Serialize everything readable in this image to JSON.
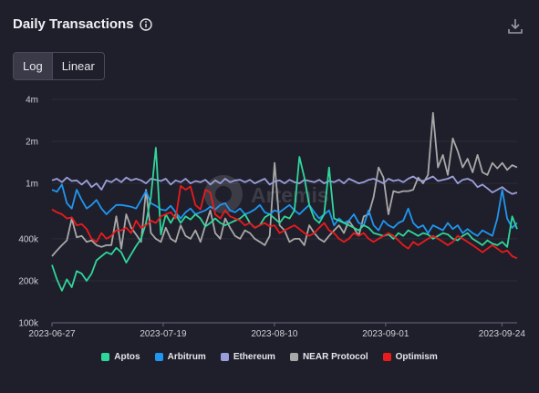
{
  "header": {
    "title": "Daily Transactions"
  },
  "scale_toggle": {
    "options": [
      "Log",
      "Linear"
    ],
    "selected": "Log"
  },
  "watermark": "Artemis",
  "colors": {
    "background": "#1f1f2b",
    "Aptos": "#2fd69a",
    "Arbitrum": "#1f96f0",
    "Ethereum": "#9a9ed8",
    "NEAR Protocol": "#a8a8a8",
    "Optimism": "#ea1b1b"
  },
  "chart_data": {
    "type": "line",
    "title": "Daily Transactions",
    "xlabel": "",
    "ylabel": "",
    "yscale": "log",
    "ylim": [
      100000,
      4000000
    ],
    "y_ticks": [
      100000,
      200000,
      400000,
      1000000,
      2000000,
      4000000
    ],
    "y_tick_labels": [
      "100k",
      "200k",
      "400k",
      "1m",
      "2m",
      "4m"
    ],
    "x_start": "2023-06-27",
    "x_end": "2023-09-27",
    "x_tick_labels": [
      "2023-06-27",
      "2023-07-19",
      "2023-08-10",
      "2023-09-01",
      "2023-09-24"
    ],
    "grid": true,
    "legend_position": "bottom",
    "series": [
      {
        "name": "Aptos",
        "values": [
          260000,
          205000,
          170000,
          205000,
          180000,
          235000,
          225000,
          200000,
          225000,
          280000,
          300000,
          320000,
          310000,
          345000,
          320000,
          270000,
          310000,
          355000,
          400000,
          520000,
          800000,
          1800000,
          430000,
          600000,
          520000,
          600000,
          520000,
          580000,
          550000,
          600000,
          560000,
          490000,
          520000,
          560000,
          520000,
          500000,
          520000,
          540000,
          560000,
          600000,
          520000,
          480000,
          500000,
          570000,
          600000,
          560000,
          520000,
          580000,
          560000,
          640000,
          1550000,
          1100000,
          700000,
          560000,
          520000,
          600000,
          1300000,
          560000,
          540000,
          520000,
          500000,
          480000,
          460000,
          500000,
          480000,
          440000,
          430000,
          420000,
          430000,
          400000,
          440000,
          420000,
          460000,
          440000,
          420000,
          440000,
          430000,
          400000,
          420000,
          440000,
          430000,
          400000,
          390000,
          420000,
          440000,
          400000,
          380000,
          360000,
          390000,
          370000,
          360000,
          380000,
          350000,
          580000,
          470000
        ]
      },
      {
        "name": "Arbitrum",
        "values": [
          900000,
          870000,
          980000,
          720000,
          660000,
          900000,
          760000,
          660000,
          700000,
          760000,
          660000,
          600000,
          650000,
          700000,
          700000,
          690000,
          680000,
          660000,
          760000,
          880000,
          720000,
          690000,
          650000,
          640000,
          690000,
          620000,
          560000,
          620000,
          660000,
          600000,
          620000,
          640000,
          680000,
          650000,
          700000,
          720000,
          640000,
          620000,
          660000,
          600000,
          620000,
          650000,
          700000,
          620000,
          600000,
          640000,
          620000,
          660000,
          700000,
          640000,
          600000,
          650000,
          700000,
          620000,
          560000,
          600000,
          640000,
          500000,
          560000,
          520000,
          540000,
          600000,
          520000,
          500000,
          640000,
          500000,
          460000,
          540000,
          500000,
          480000,
          520000,
          540000,
          660000,
          520000,
          480000,
          500000,
          440000,
          500000,
          480000,
          460000,
          520000,
          470000,
          500000,
          440000,
          470000,
          440000,
          420000,
          460000,
          440000,
          420000,
          560000,
          900000,
          560000,
          480000,
          520000
        ]
      },
      {
        "name": "Ethereum",
        "values": [
          1050000,
          1080000,
          1020000,
          1100000,
          1040000,
          1050000,
          980000,
          1050000,
          940000,
          1000000,
          900000,
          1050000,
          1020000,
          1080000,
          1020000,
          1100000,
          1050000,
          1080000,
          1050000,
          1000000,
          1080000,
          1060000,
          1040000,
          1080000,
          980000,
          1050000,
          1020000,
          1080000,
          1000000,
          1040000,
          1020000,
          1060000,
          980000,
          1050000,
          1000000,
          1080000,
          1020000,
          1050000,
          1060000,
          1020000,
          1060000,
          1000000,
          1040000,
          1080000,
          980000,
          1030000,
          1050000,
          1000000,
          1060000,
          1020000,
          1000000,
          1060000,
          1040000,
          1020000,
          1060000,
          1000000,
          1040000,
          1020000,
          1060000,
          1000000,
          1080000,
          1040000,
          1000000,
          1020000,
          1060000,
          1080000,
          1040000,
          1000000,
          1080000,
          1040000,
          1060000,
          1020000,
          1080000,
          1120000,
          1060000,
          1040000,
          1080000,
          1120000,
          1040000,
          1060000,
          1080000,
          1120000,
          1000000,
          1060000,
          1080000,
          1040000,
          940000,
          980000,
          920000,
          860000,
          900000,
          940000,
          880000,
          840000,
          860000
        ]
      },
      {
        "name": "NEAR Protocol",
        "values": [
          300000,
          330000,
          360000,
          390000,
          560000,
          410000,
          420000,
          380000,
          390000,
          360000,
          350000,
          360000,
          360000,
          580000,
          340000,
          600000,
          480000,
          430000,
          380000,
          900000,
          440000,
          400000,
          380000,
          480000,
          400000,
          380000,
          500000,
          420000,
          400000,
          460000,
          380000,
          500000,
          640000,
          440000,
          400000,
          560000,
          480000,
          420000,
          400000,
          460000,
          440000,
          400000,
          380000,
          360000,
          420000,
          1400000,
          500000,
          460000,
          380000,
          400000,
          400000,
          360000,
          500000,
          440000,
          400000,
          380000,
          420000,
          460000,
          500000,
          440000,
          540000,
          480000,
          420000,
          580000,
          600000,
          800000,
          1300000,
          1100000,
          600000,
          880000,
          860000,
          880000,
          880000,
          900000,
          1100000,
          1000000,
          1150000,
          3200000,
          1300000,
          1600000,
          1150000,
          2100000,
          1700000,
          1300000,
          1500000,
          1200000,
          1600000,
          1200000,
          1150000,
          1400000,
          1280000,
          1400000,
          1250000,
          1350000,
          1300000
        ]
      },
      {
        "name": "Optimism",
        "values": [
          650000,
          620000,
          600000,
          560000,
          570000,
          500000,
          510000,
          470000,
          400000,
          380000,
          440000,
          400000,
          420000,
          460000,
          460000,
          480000,
          440000,
          540000,
          480000,
          500000,
          540000,
          520000,
          580000,
          600000,
          620000,
          560000,
          960000,
          900000,
          950000,
          700000,
          650000,
          900000,
          860000,
          600000,
          560000,
          640000,
          580000,
          560000,
          540000,
          500000,
          520000,
          480000,
          500000,
          520000,
          490000,
          500000,
          440000,
          460000,
          480000,
          500000,
          470000,
          440000,
          420000,
          440000,
          480000,
          520000,
          460000,
          440000,
          400000,
          380000,
          400000,
          440000,
          420000,
          440000,
          400000,
          380000,
          400000,
          420000,
          440000,
          420000,
          390000,
          360000,
          340000,
          380000,
          360000,
          380000,
          400000,
          420000,
          400000,
          380000,
          360000,
          380000,
          420000,
          400000,
          380000,
          360000,
          340000,
          320000,
          340000,
          360000,
          340000,
          320000,
          330000,
          300000,
          290000
        ]
      }
    ]
  }
}
